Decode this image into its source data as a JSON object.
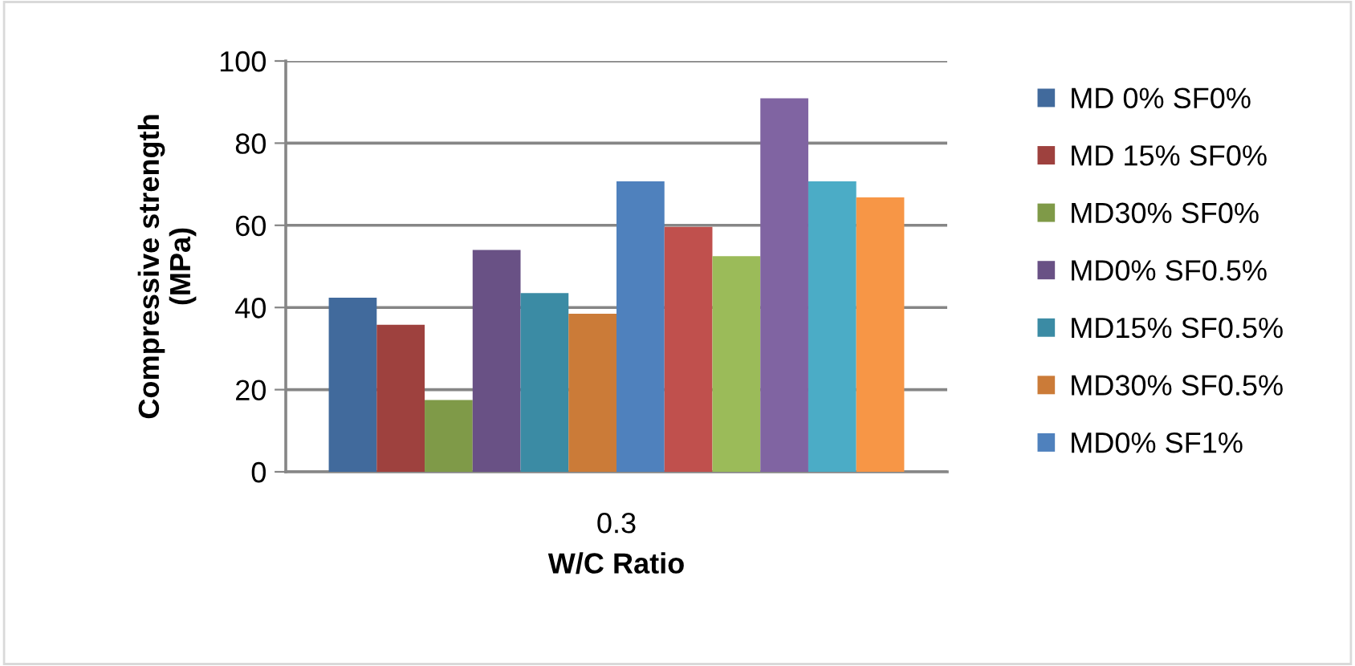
{
  "chart_data": {
    "type": "bar",
    "xlabel": "W/C Ratio",
    "ylabel": "Compressive strength\n(MPa)",
    "categories": [
      "0.3"
    ],
    "ylim": [
      0,
      100
    ],
    "yticks": [
      0,
      20,
      40,
      60,
      80,
      100
    ],
    "grid": "y",
    "legend": "right",
    "series": [
      {
        "name": "MD 0% SF0%",
        "color": "#416a9c",
        "values": [
          42.4
        ]
      },
      {
        "name": "MD 15% SF0%",
        "color": "#9e413e",
        "values": [
          35.8
        ]
      },
      {
        "name": "MD30% SF0%",
        "color": "#7f9a48",
        "values": [
          17.5
        ]
      },
      {
        "name": "MD0% SF0.5%",
        "color": "#695185",
        "values": [
          54
        ]
      },
      {
        "name": "MD15% SF0.5%",
        "color": "#3b8ba4",
        "values": [
          43.5
        ]
      },
      {
        "name": "MD30% SF0.5%",
        "color": "#cb7b38",
        "values": [
          38.5
        ]
      },
      {
        "name": "MD0% SF1%",
        "color": "#4f81bd",
        "values": [
          70.7
        ]
      },
      {
        "color": "#c0504d",
        "values": [
          59.6
        ]
      },
      {
        "color": "#9bbb59",
        "values": [
          52.5
        ]
      },
      {
        "color": "#8064a2",
        "values": [
          90.9
        ]
      },
      {
        "color": "#4bacc6",
        "values": [
          70.7
        ]
      },
      {
        "color": "#f79646",
        "values": [
          66.8
        ]
      }
    ]
  }
}
